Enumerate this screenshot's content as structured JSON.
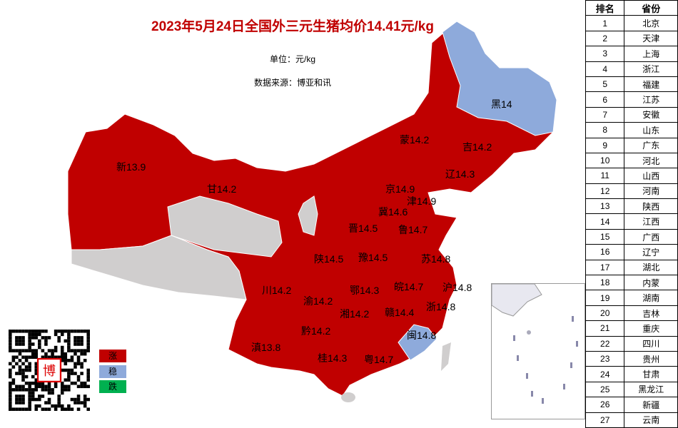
{
  "title": "2023年5月24日全国外三元生猪均价14.41元/kg",
  "unit": "单位：元/kg",
  "source": "数据来源：博亚和讯",
  "colors": {
    "rise": "#c00000",
    "stable": "#8eaadb",
    "fall": "#00b050",
    "no_data": "#d0cece"
  },
  "legend": [
    {
      "label": "涨",
      "color": "#c00000"
    },
    {
      "label": "稳",
      "color": "#8eaadb"
    },
    {
      "label": "跌",
      "color": "#00b050"
    }
  ],
  "provinces": [
    {
      "label": "新13.9"
    },
    {
      "label": "甘14.2"
    },
    {
      "label": "蒙14.2"
    },
    {
      "label": "黑14"
    },
    {
      "label": "吉14.2"
    },
    {
      "label": "辽14.3"
    },
    {
      "label": "京14.9"
    },
    {
      "label": "津14.9"
    },
    {
      "label": "冀14.6"
    },
    {
      "label": "晋14.5"
    },
    {
      "label": "鲁14.7"
    },
    {
      "label": "陕14.5"
    },
    {
      "label": "豫14.5"
    },
    {
      "label": "苏14.8"
    },
    {
      "label": "川14.2"
    },
    {
      "label": "渝14.2"
    },
    {
      "label": "鄂14.3"
    },
    {
      "label": "皖14.7"
    },
    {
      "label": "沪14.8"
    },
    {
      "label": "浙14.8"
    },
    {
      "label": "湘14.2"
    },
    {
      "label": "赣14.4"
    },
    {
      "label": "黔14.2"
    },
    {
      "label": "闽14.8"
    },
    {
      "label": "滇13.8"
    },
    {
      "label": "桂14.3"
    },
    {
      "label": "粤14.7"
    }
  ],
  "qr_logo": "博亚和讯",
  "ranking": {
    "headers": [
      "排名",
      "省份"
    ],
    "rows": [
      [
        "1",
        "北京"
      ],
      [
        "2",
        "天津"
      ],
      [
        "3",
        "上海"
      ],
      [
        "4",
        "浙江"
      ],
      [
        "5",
        "福建"
      ],
      [
        "6",
        "江苏"
      ],
      [
        "7",
        "安徽"
      ],
      [
        "8",
        "山东"
      ],
      [
        "9",
        "广东"
      ],
      [
        "10",
        "河北"
      ],
      [
        "11",
        "山西"
      ],
      [
        "12",
        "河南"
      ],
      [
        "13",
        "陕西"
      ],
      [
        "14",
        "江西"
      ],
      [
        "15",
        "广西"
      ],
      [
        "16",
        "辽宁"
      ],
      [
        "17",
        "湖北"
      ],
      [
        "18",
        "内蒙"
      ],
      [
        "19",
        "湖南"
      ],
      [
        "20",
        "吉林"
      ],
      [
        "21",
        "重庆"
      ],
      [
        "22",
        "四川"
      ],
      [
        "23",
        "贵州"
      ],
      [
        "24",
        "甘肃"
      ],
      [
        "25",
        "黑龙江"
      ],
      [
        "26",
        "新疆"
      ],
      [
        "27",
        "云南"
      ]
    ]
  }
}
